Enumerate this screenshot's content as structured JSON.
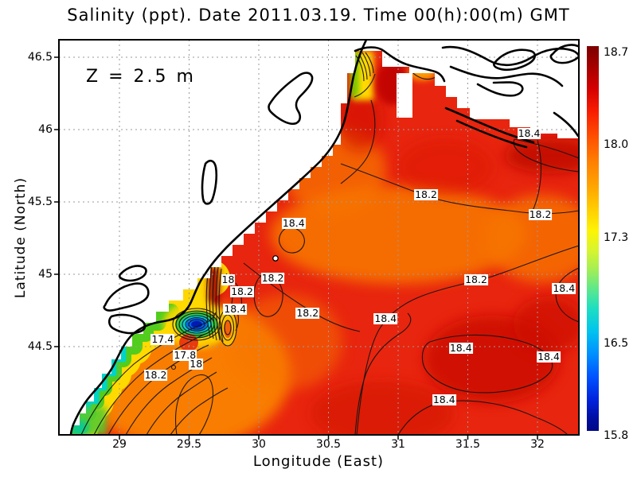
{
  "title": "Salinity (ppt). Date 2011.03.19. Time 00(h):00(m) GMT",
  "annotation": "Z = 2.5 m",
  "axes": {
    "x": {
      "label": "Longitude (East)",
      "ticks": [
        {
          "v": 29,
          "label": "29"
        },
        {
          "v": 29.5,
          "label": "29.5"
        },
        {
          "v": 30,
          "label": "30"
        },
        {
          "v": 30.5,
          "label": "30.5"
        },
        {
          "v": 31,
          "label": "31"
        },
        {
          "v": 31.5,
          "label": "31.5"
        },
        {
          "v": 32,
          "label": "32"
        }
      ]
    },
    "y": {
      "label": "Latitude (North)",
      "ticks": [
        {
          "v": 46.5,
          "label": "46.5"
        },
        {
          "v": 46,
          "label": "46"
        },
        {
          "v": 45.5,
          "label": "45.5"
        },
        {
          "v": 45,
          "label": "45"
        },
        {
          "v": 44.5,
          "label": "44.5"
        }
      ]
    }
  },
  "colorbar": {
    "min": 15.8,
    "max": 18.7,
    "colormap": "jet",
    "ticks": [
      {
        "v": 18.7,
        "label": "18.7"
      },
      {
        "v": 18.0,
        "label": "18.0"
      },
      {
        "v": 17.3,
        "label": "17.3"
      },
      {
        "v": 16.5,
        "label": "16.5"
      },
      {
        "v": 15.8,
        "label": "15.8"
      }
    ]
  },
  "chart_data": {
    "type": "heatmap",
    "variable": "Salinity (ppt)",
    "date": "2011.03.19",
    "time": "00(h):00(m) GMT",
    "depth": "Z = 2.5 m",
    "xlabel": "Longitude (East)",
    "ylabel": "Latitude (North)",
    "xlim": [
      28.6,
      32.3
    ],
    "ylim": [
      43.9,
      46.62
    ],
    "x_ticks": [
      29,
      29.5,
      30,
      30.5,
      31,
      31.5,
      32
    ],
    "y_ticks": [
      44.5,
      45,
      45.5,
      46,
      46.5
    ],
    "value_range": [
      15.8,
      18.7
    ],
    "colorbar_ticks": [
      15.8,
      16.5,
      17.3,
      18.0,
      18.7
    ],
    "contour_interval": 0.2,
    "contour_labels": [
      {
        "value": "18.4",
        "lon": 31.94,
        "lat": 45.97
      },
      {
        "value": "18.2",
        "lon": 31.2,
        "lat": 45.55
      },
      {
        "value": "18.2",
        "lon": 32.02,
        "lat": 45.41
      },
      {
        "value": "18.4",
        "lon": 30.25,
        "lat": 45.35
      },
      {
        "value": "18",
        "lon": 29.78,
        "lat": 44.96
      },
      {
        "value": "18.2",
        "lon": 29.88,
        "lat": 44.88
      },
      {
        "value": "18.2",
        "lon": 30.1,
        "lat": 44.97
      },
      {
        "value": "18.4",
        "lon": 29.83,
        "lat": 44.76
      },
      {
        "value": "18.2",
        "lon": 30.35,
        "lat": 44.73
      },
      {
        "value": "17.4",
        "lon": 29.31,
        "lat": 44.55
      },
      {
        "value": "17.8",
        "lon": 29.47,
        "lat": 44.44
      },
      {
        "value": "18",
        "lon": 29.55,
        "lat": 44.38
      },
      {
        "value": "18.2",
        "lon": 29.26,
        "lat": 44.3
      },
      {
        "value": "18.2",
        "lon": 31.56,
        "lat": 44.96
      },
      {
        "value": "18.4",
        "lon": 32.19,
        "lat": 44.9
      },
      {
        "value": "18.4",
        "lon": 30.91,
        "lat": 44.69
      },
      {
        "value": "18.4",
        "lon": 31.45,
        "lat": 44.49
      },
      {
        "value": "18.4",
        "lon": 32.08,
        "lat": 44.43
      },
      {
        "value": "18.4",
        "lon": 31.33,
        "lat": 44.13
      }
    ],
    "station_marker": {
      "lon": 30.12,
      "lat": 45.11
    }
  },
  "colors": {
    "sea_base": "#e8250e",
    "land": "#ffffff",
    "coastline": "#000000",
    "grid": "#9a9a9a",
    "contour": "#151515",
    "label_bg": "#ffffff"
  }
}
